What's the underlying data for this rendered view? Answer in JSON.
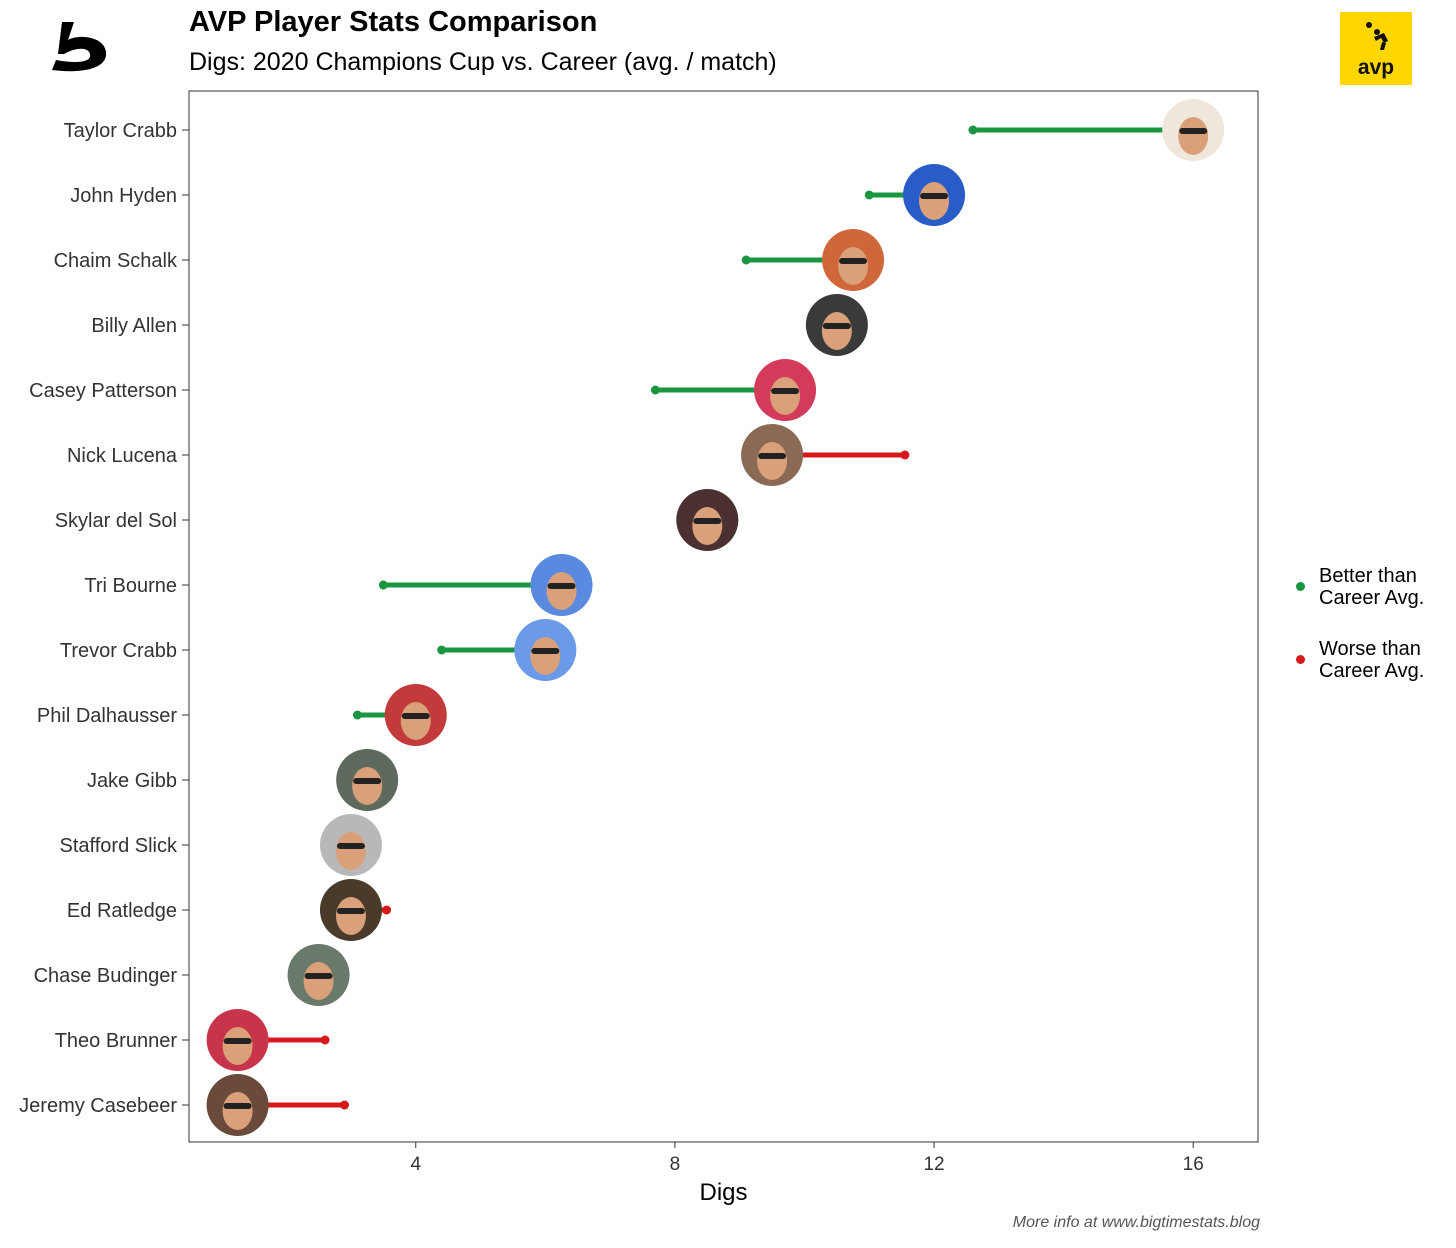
{
  "title": "AVP Player Stats Comparison",
  "subtitle": "Digs: 2020 Champions Cup vs. Career (avg. / match)",
  "footer": "More info at www.bigtimestats.blog",
  "brand_right": "avp",
  "colors": {
    "better": "#1a9641",
    "worse": "#d7191c",
    "brand_yellow": "#ffd600"
  },
  "legend": [
    {
      "key": "better",
      "label": "Better than Career Avg."
    },
    {
      "key": "worse",
      "label": "Worse than Career Avg."
    }
  ],
  "chart_data": {
    "type": "dumbbell",
    "xlabel": "Digs",
    "xlim": [
      0.5,
      17.0
    ],
    "xticks": [
      4,
      8,
      12,
      16
    ],
    "grid": false,
    "legend_position": "right",
    "series": [
      {
        "name": "Champions Cup 2020 (avg. / match)",
        "marker": "player photo"
      },
      {
        "name": "Career (avg. / match)",
        "marker": "dot"
      }
    ],
    "players": [
      {
        "name": "Taylor Crabb",
        "champions_cup": 16.0,
        "career": 12.6,
        "status": "better"
      },
      {
        "name": "John Hyden",
        "champions_cup": 12.0,
        "career": 11.0,
        "status": "better"
      },
      {
        "name": "Chaim Schalk",
        "champions_cup": 10.75,
        "career": 9.1,
        "status": "better"
      },
      {
        "name": "Billy Allen",
        "champions_cup": 10.5,
        "career": 10.5,
        "status": "better"
      },
      {
        "name": "Casey Patterson",
        "champions_cup": 9.7,
        "career": 7.7,
        "status": "better"
      },
      {
        "name": "Nick Lucena",
        "champions_cup": 9.5,
        "career": 11.55,
        "status": "worse"
      },
      {
        "name": "Skylar del Sol",
        "champions_cup": 8.5,
        "career": 8.5,
        "status": "better"
      },
      {
        "name": "Tri Bourne",
        "champions_cup": 6.25,
        "career": 3.5,
        "status": "better"
      },
      {
        "name": "Trevor Crabb",
        "champions_cup": 6.0,
        "career": 4.4,
        "status": "better"
      },
      {
        "name": "Phil Dalhausser",
        "champions_cup": 4.0,
        "career": 3.1,
        "status": "better"
      },
      {
        "name": "Jake Gibb",
        "champions_cup": 3.25,
        "career": 3.25,
        "status": "better"
      },
      {
        "name": "Stafford Slick",
        "champions_cup": 3.0,
        "career": 3.0,
        "status": "better"
      },
      {
        "name": "Ed Ratledge",
        "champions_cup": 3.0,
        "career": 3.55,
        "status": "worse"
      },
      {
        "name": "Chase Budinger",
        "champions_cup": 2.5,
        "career": 2.5,
        "status": "better"
      },
      {
        "name": "Theo Brunner",
        "champions_cup": 1.25,
        "career": 2.6,
        "status": "worse"
      },
      {
        "name": "Jeremy Casebeer",
        "champions_cup": 1.25,
        "career": 2.9,
        "status": "worse"
      }
    ]
  }
}
